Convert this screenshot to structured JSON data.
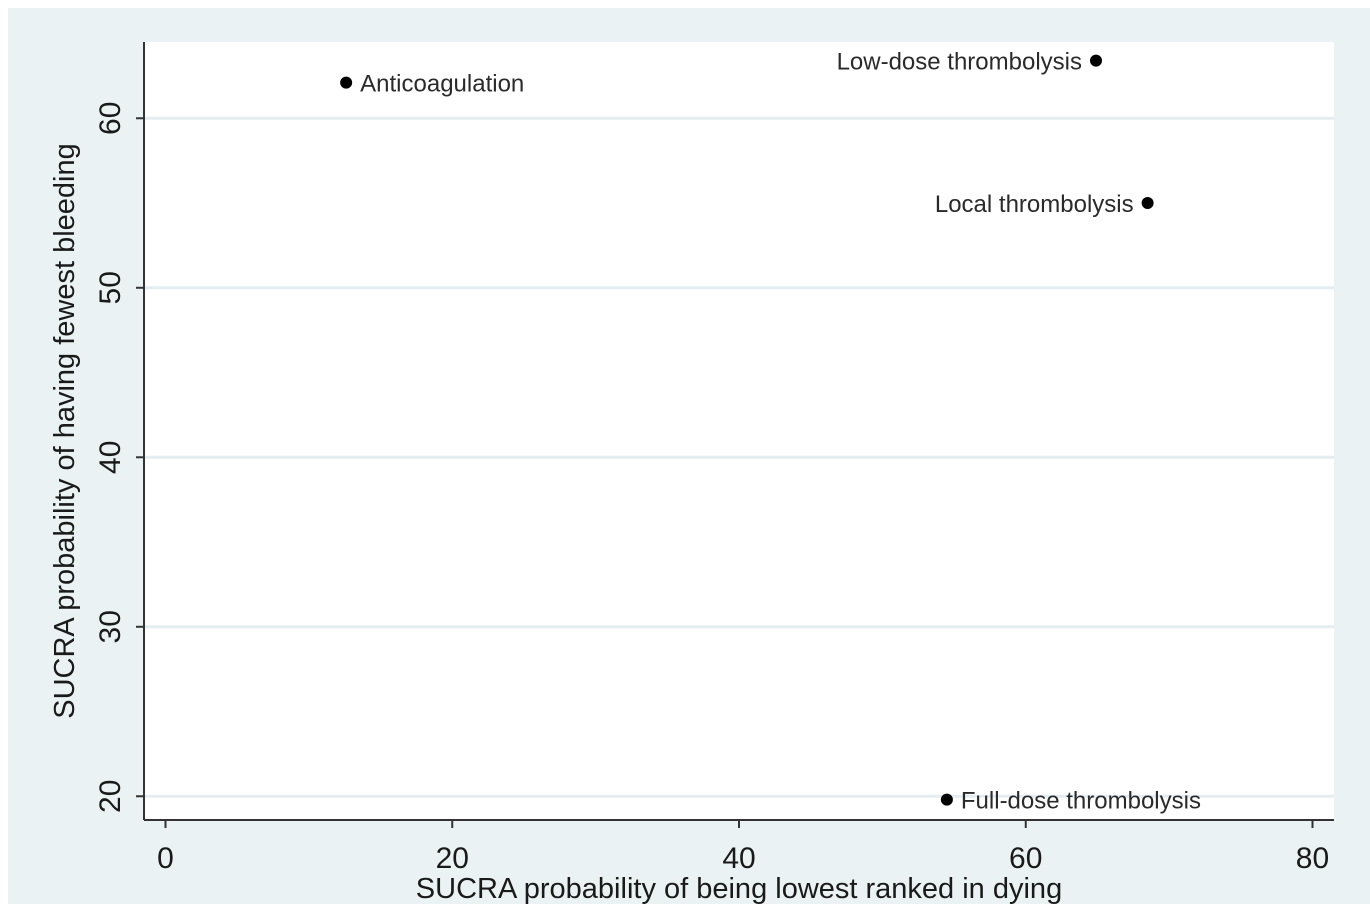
{
  "chart_data": {
    "type": "scatter",
    "xlabel": "SUCRA probability of being lowest ranked in dying",
    "ylabel": "SUCRA probability of having fewest bleeding",
    "xlim": [
      -1.5,
      81.5
    ],
    "ylim": [
      18.6,
      64.5
    ],
    "x_ticks": [
      0,
      20,
      40,
      60,
      80
    ],
    "y_ticks": [
      20,
      30,
      40,
      50,
      60
    ],
    "grid": "horizontal",
    "points": [
      {
        "label": "Anticoagulation",
        "x": 12.6,
        "y": 62.1,
        "label_side": "right"
      },
      {
        "label": "Low-dose thrombolysis",
        "x": 64.9,
        "y": 63.4,
        "label_side": "left"
      },
      {
        "label": "Local thrombolysis",
        "x": 68.5,
        "y": 55.0,
        "label_side": "left"
      },
      {
        "label": "Full-dose thrombolysis",
        "x": 54.5,
        "y": 19.8,
        "label_side": "right"
      }
    ],
    "colors": {
      "outer": "#eaf2f3",
      "plot": "#ffffff",
      "grid": "#e4eef0",
      "marker": "#000000",
      "axis": "#333333"
    }
  }
}
